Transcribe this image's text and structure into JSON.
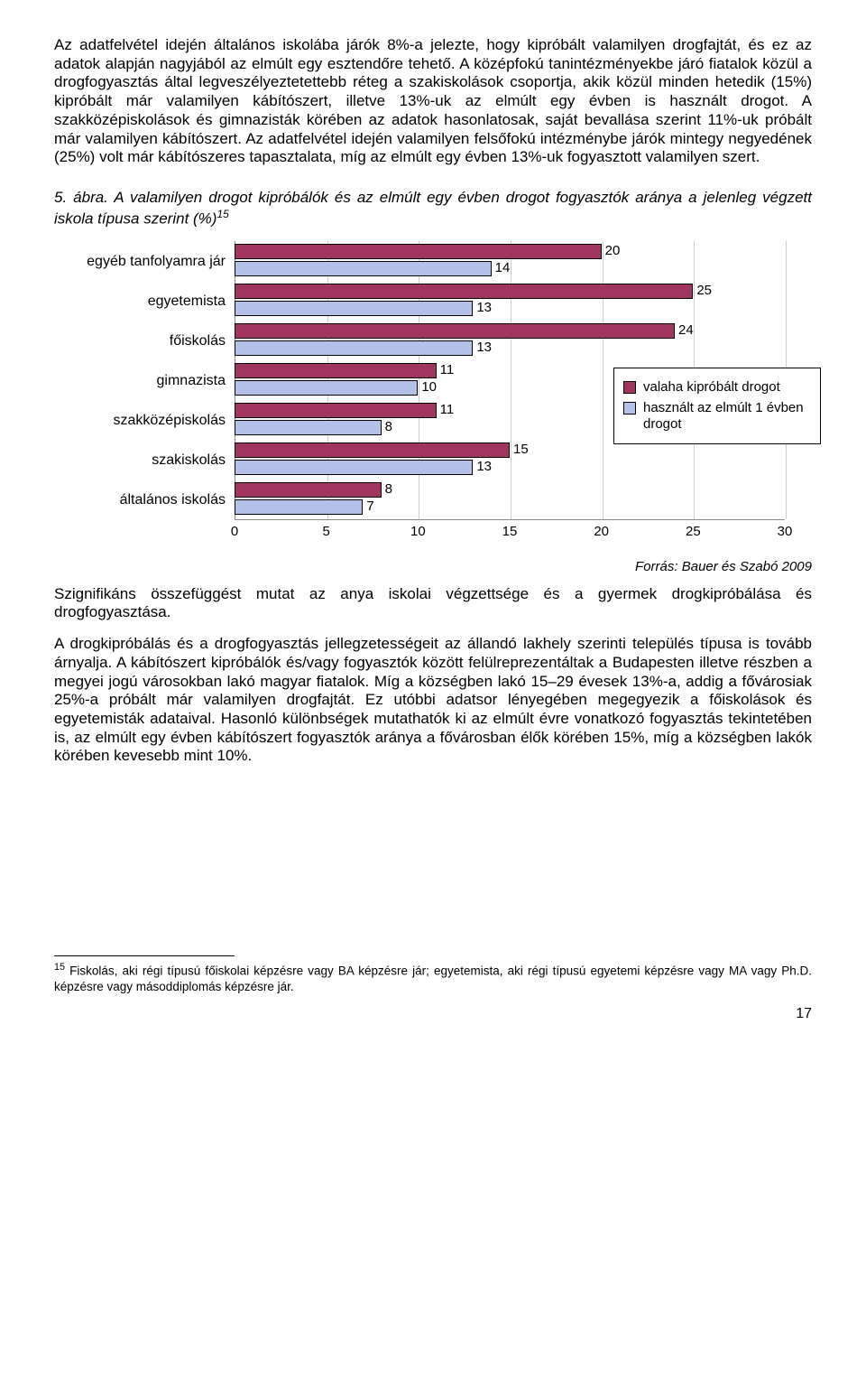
{
  "para1": "Az adatfelvétel idején általános iskolába járók 8%-a jelezte, hogy kipróbált valamilyen drogfajtát, és ez az adatok alapján nagyjából az elmúlt egy esztendőre tehető. A középfokú tanintézményekbe járó fiatalok közül a drogfogyasztás által legveszélyeztetettebb réteg a szakiskolások csoportja, akik közül minden hetedik (15%) kipróbált már valamilyen kábítószert, illetve 13%-uk az elmúlt egy évben is használt drogot. A szakközépiskolások és gimnazisták körében az adatok hasonlatosak, saját bevallása szerint 11%-uk próbált már valamilyen kábítószert. Az adatfelvétel idején valamilyen felsőfokú intézménybe járók mintegy negyedének (25%) volt már kábítószeres tapasztalata, míg az elmúlt egy évben 13%-uk fogyasztott valamilyen szert.",
  "caption_num": "5. ábra.",
  "caption_text": "A valamilyen drogot kipróbálók és az elmúlt egy évben drogot fogyasztók aránya a jelenleg végzett iskola típusa szerint (%)",
  "caption_sup": "15",
  "chart": {
    "type": "horizontal-bar",
    "categories": [
      "egyéb tanfolyamra jár",
      "egyetemista",
      "főiskolás",
      "gimnazista",
      "szakközépiskolás",
      "szakiskolás",
      "általános iskolás"
    ],
    "series": [
      {
        "name": "valaha kipróbált drogot",
        "color": "#a0355f",
        "values": [
          20,
          25,
          24,
          11,
          11,
          15,
          8
        ]
      },
      {
        "name": "használt az elmúlt 1 évben drogot",
        "color": "#b3c1e8",
        "values": [
          14,
          13,
          13,
          10,
          8,
          13,
          7
        ]
      }
    ],
    "xmax": 30,
    "xtick_step": 5,
    "xticks": [
      0,
      5,
      10,
      15,
      20,
      25,
      30
    ],
    "plot_background": "#ffffff",
    "grid_color": "#cccccc",
    "bar_border": "#000000",
    "label_fontsize": 16,
    "value_fontsize": 15,
    "legend_border": "#000000",
    "legend_bg": "#ffffff"
  },
  "source": "Forrás: Bauer és Szabó 2009",
  "para2": "Szignifikáns összefüggést mutat az anya iskolai végzettsége és a gyermek drogkipróbálása és drogfogyasztása.",
  "para3": "A drogkipróbálás és a drogfogyasztás jellegzetességeit az állandó lakhely szerinti település típusa is tovább árnyalja. A kábítószert kipróbálók és/vagy fogyasztók között felülreprezentáltak a Budapesten illetve részben a megyei jogú városokban lakó magyar fiatalok. Míg a községben lakó 15–29 évesek 13%-a, addig a fővárosiak 25%-a próbált már valamilyen drogfajtát. Ez utóbbi adatsor lényegében megegyezik a főiskolások és egyetemisták adataival. Hasonló különbségek mutathatók ki az elmúlt évre vonatkozó fogyasztás tekintetében is, az elmúlt egy évben kábítószert fogyasztók aránya a fővárosban élők körében 15%, míg a községben lakók körében kevesebb mint 10%.",
  "footnote_num": "15",
  "footnote": "Fiskolás, aki régi típusú főiskolai képzésre vagy BA képzésre jár; egyetemista, aki régi típusú egyetemi képzésre vagy MA vagy Ph.D. képzésre vagy másoddiplomás képzésre jár.",
  "page_number": "17"
}
